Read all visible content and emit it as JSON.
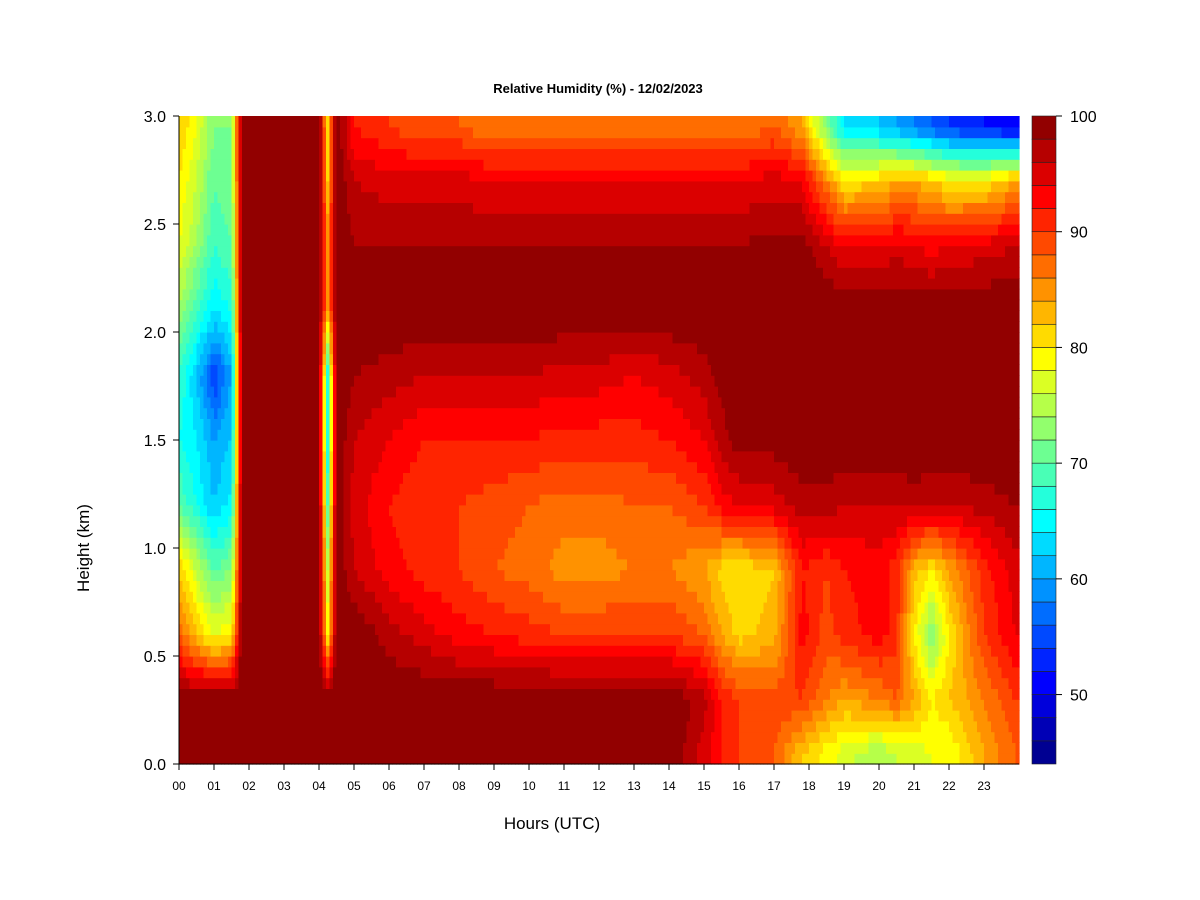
{
  "chart_data": {
    "type": "heatmap",
    "title": "Relative Humidity (%) - 12/02/2023",
    "xlabel": "Hours (UTC)",
    "ylabel": "Height (km)",
    "x_tick_labels": [
      "00",
      "01",
      "02",
      "03",
      "04",
      "05",
      "06",
      "07",
      "08",
      "09",
      "10",
      "11",
      "12",
      "13",
      "14",
      "15",
      "16",
      "17",
      "18",
      "19",
      "20",
      "21",
      "22",
      "23"
    ],
    "y_tick_labels": [
      "0.0",
      "0.5",
      "1.0",
      "1.5",
      "2.0",
      "2.5",
      "3.0"
    ],
    "y_ticks": [
      0.0,
      0.5,
      1.0,
      1.5,
      2.0,
      2.5,
      3.0
    ],
    "xlim": [
      0,
      24
    ],
    "ylim": [
      0,
      3
    ],
    "colorbar": {
      "min": 44,
      "max": 100,
      "step": 2,
      "tick_values": [
        50,
        60,
        70,
        80,
        90,
        100
      ],
      "tick_labels": [
        "50",
        "60",
        "70",
        "80",
        "90",
        "100"
      ]
    },
    "z_grid": {
      "heights_km": [
        0.05,
        0.3,
        0.6,
        0.9,
        1.2,
        1.5,
        1.8,
        2.1,
        2.4,
        2.7,
        2.95
      ],
      "times_h": [
        0.0,
        0.5,
        1.0,
        1.5,
        1.8,
        2.0,
        3.0,
        4.0,
        4.25,
        4.5,
        5.0,
        6.0,
        7.0,
        8.0,
        9.0,
        10.0,
        11.0,
        12.0,
        13.0,
        14.0,
        15.0,
        15.5,
        16.0,
        17.0,
        17.8,
        18.5,
        19.0,
        20.0,
        20.5,
        21.0,
        21.5,
        22.0,
        23.0,
        23.9
      ],
      "values": [
        [
          100,
          100,
          100,
          100,
          100,
          100,
          100,
          100,
          100,
          100,
          100,
          100,
          100,
          100,
          100,
          100,
          100,
          100,
          100,
          100,
          95,
          92,
          90,
          88,
          82,
          79,
          77,
          74,
          76,
          77,
          78,
          78,
          84,
          88
        ],
        [
          100,
          100,
          100,
          100,
          100,
          100,
          100,
          100,
          100,
          100,
          100,
          100,
          100,
          100,
          100,
          100,
          100,
          100,
          100,
          100,
          97,
          92,
          90,
          89,
          90,
          86,
          84,
          86,
          88,
          84,
          80,
          82,
          86,
          90
        ],
        [
          88,
          82,
          78,
          80,
          100,
          100,
          100,
          100,
          80,
          100,
          100,
          97,
          95,
          93,
          92,
          91,
          90,
          90,
          90,
          90,
          88,
          84,
          81,
          83,
          93,
          89,
          91,
          93,
          91,
          80,
          72,
          80,
          90,
          94
        ],
        [
          82,
          76,
          70,
          72,
          100,
          100,
          100,
          100,
          76,
          100,
          96,
          93,
          91,
          90,
          88,
          87,
          85,
          85,
          86,
          86,
          84,
          81,
          80,
          82,
          92,
          90,
          92,
          93,
          91,
          83,
          80,
          84,
          91,
          95
        ],
        [
          70,
          66,
          62,
          65,
          100,
          100,
          100,
          100,
          70,
          100,
          95,
          92,
          90,
          90,
          89,
          88,
          87,
          87,
          88,
          88,
          90,
          93,
          94,
          95,
          97,
          97,
          96,
          96,
          96,
          97,
          96,
          96,
          97,
          98
        ],
        [
          66,
          64,
          60,
          62,
          100,
          100,
          100,
          100,
          66,
          100,
          96,
          94,
          92,
          92,
          92,
          92,
          91,
          91,
          91,
          92,
          94,
          97,
          99,
          99,
          100,
          100,
          100,
          100,
          100,
          100,
          100,
          100,
          100,
          100
        ],
        [
          68,
          62,
          54,
          60,
          100,
          100,
          100,
          100,
          66,
          100,
          98,
          97,
          96,
          96,
          96,
          96,
          95,
          95,
          94,
          95,
          97,
          99,
          100,
          100,
          100,
          100,
          100,
          100,
          100,
          100,
          100,
          100,
          100,
          100
        ],
        [
          74,
          68,
          64,
          66,
          100,
          100,
          100,
          100,
          84,
          100,
          100,
          100,
          100,
          100,
          100,
          100,
          100,
          100,
          100,
          100,
          100,
          100,
          100,
          100,
          100,
          100,
          100,
          100,
          100,
          100,
          100,
          100,
          100,
          100
        ],
        [
          78,
          74,
          68,
          70,
          100,
          100,
          100,
          100,
          86,
          100,
          98,
          98,
          98,
          98,
          98,
          98,
          98,
          98,
          98,
          98,
          98,
          98,
          98,
          99,
          99,
          96,
          94,
          94,
          95,
          94,
          93,
          94,
          95,
          96
        ],
        [
          80,
          76,
          70,
          72,
          100,
          100,
          100,
          100,
          82,
          100,
          96,
          95,
          95,
          95,
          94,
          94,
          94,
          94,
          94,
          94,
          94,
          94,
          94,
          95,
          94,
          86,
          80,
          82,
          84,
          84,
          82,
          80,
          80,
          84
        ],
        [
          82,
          78,
          72,
          72,
          100,
          100,
          100,
          100,
          80,
          100,
          92,
          90,
          88,
          88,
          86,
          86,
          86,
          86,
          86,
          86,
          86,
          86,
          86,
          88,
          84,
          72,
          64,
          62,
          60,
          58,
          56,
          54,
          52,
          50
        ]
      ]
    }
  }
}
